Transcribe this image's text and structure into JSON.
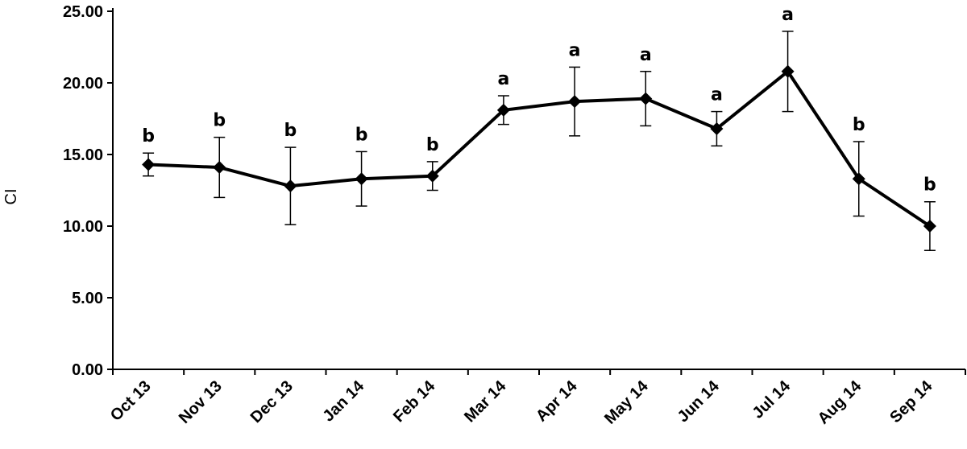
{
  "chart_data": {
    "type": "line",
    "title": "",
    "xlabel": "",
    "ylabel": "CI",
    "ylim": [
      0,
      25
    ],
    "y_ticks": [
      "0.00",
      "5.00",
      "10.00",
      "15.00",
      "20.00",
      "25.00"
    ],
    "y_tick_values": [
      0,
      5,
      10,
      15,
      20,
      25
    ],
    "grid": false,
    "legend": "none",
    "categories": [
      "Oct 13",
      "Nov 13",
      "Dec 13",
      "Jan 14",
      "Feb 14",
      "Mar 14",
      "Apr 14",
      "May 14",
      "Jun 14",
      "Jul 14",
      "Aug 14",
      "Sep 14"
    ],
    "series": [
      {
        "values": [
          14.3,
          14.1,
          12.8,
          13.3,
          13.5,
          18.1,
          18.7,
          18.9,
          16.8,
          20.8,
          13.3,
          10.0
        ],
        "error": [
          0.8,
          2.1,
          2.7,
          1.9,
          1.0,
          1.0,
          2.4,
          1.9,
          1.2,
          2.8,
          2.6,
          1.7
        ],
        "significance": [
          "b",
          "b",
          "b",
          "b",
          "b",
          "a",
          "a",
          "a",
          "a",
          "a",
          "b",
          "b"
        ],
        "color": "#000000",
        "marker": "diamond"
      }
    ]
  }
}
